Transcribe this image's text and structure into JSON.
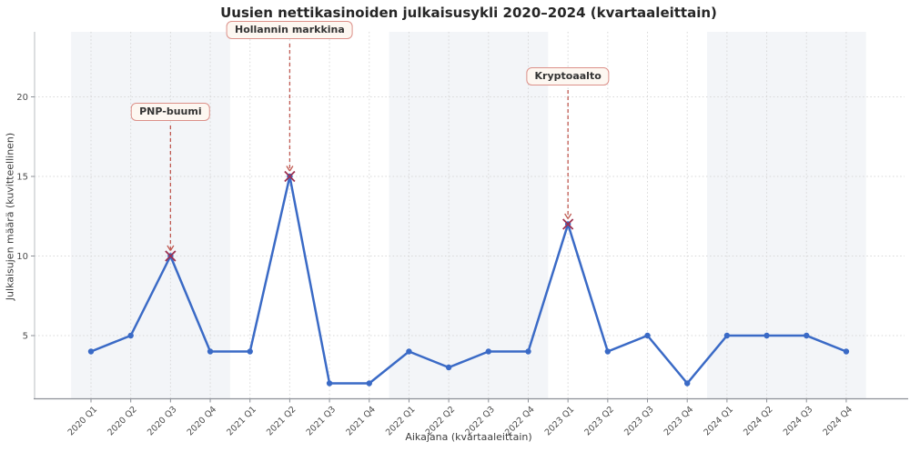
{
  "chart_data": {
    "type": "line",
    "title": "Uusien nettikasinoiden julkaisusykli 2020–2024 (kvartaaleittain)",
    "xlabel": "Aikajana (kvartaaleittain)",
    "ylabel": "Julkaisujen määrä (kuvitteellinen)",
    "categories": [
      "2020 Q1",
      "2020 Q2",
      "2020 Q3",
      "2020 Q4",
      "2021 Q1",
      "2021 Q2",
      "2021 Q3",
      "2021 Q4",
      "2022 Q1",
      "2022 Q2",
      "2022 Q3",
      "2022 Q4",
      "2023 Q1",
      "2023 Q2",
      "2023 Q3",
      "2023 Q4",
      "2024 Q1",
      "2024 Q2",
      "2024 Q3",
      "2024 Q4"
    ],
    "values": [
      4,
      5,
      10,
      4,
      4,
      15,
      2,
      2,
      4,
      3,
      4,
      4,
      12,
      4,
      5,
      2,
      5,
      5,
      5,
      4
    ],
    "yticks": [
      5,
      10,
      15,
      20
    ],
    "ylim": [
      1,
      24
    ],
    "grid": true,
    "legend": "none",
    "shaded_year_bands": [
      "2020",
      "2022",
      "2024"
    ],
    "annotations": [
      {
        "label": "PNP-buumi",
        "category": "2020 Q3",
        "value": 10
      },
      {
        "label": "Hollannin markkina",
        "category": "2021 Q2",
        "value": 15
      },
      {
        "label": "Kryptoaalto",
        "category": "2023 Q1",
        "value": 12
      }
    ],
    "colors": {
      "line": "#3a6ac6",
      "marker": "#3a6ac6",
      "peak_marker": "#9e3050",
      "annotation_line": "#c05a52",
      "annotation_box_bg": "#fdf7f1",
      "annotation_box_border": "#dc9089",
      "band": "#f3f5f8",
      "grid": "#d7d7d7",
      "axis": "#8c9097",
      "tick_text": "#4b4b4b"
    }
  }
}
